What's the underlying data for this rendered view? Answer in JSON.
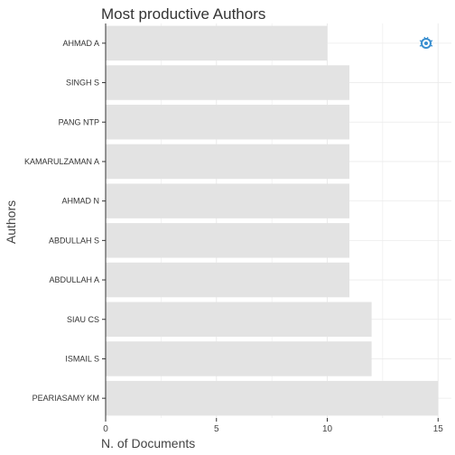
{
  "chart_data": {
    "type": "bar",
    "orientation": "horizontal",
    "title": "Most productive Authors",
    "xlabel": "N. of Documents",
    "ylabel": "Authors",
    "categories": [
      "AHMAD A",
      "SINGH S",
      "PANG NTP",
      "KAMARULZAMAN A",
      "AHMAD N",
      "ABDULLAH S",
      "ABDULLAH A",
      "SIAU CS",
      "ISMAIL S",
      "PEARIASAMY KM"
    ],
    "values": [
      10,
      11,
      11,
      11,
      11,
      11,
      11,
      12,
      12,
      15
    ],
    "xlim": [
      0,
      15.6
    ],
    "xticks": [
      "0",
      "5",
      "10",
      "15"
    ],
    "grid": true,
    "bar_color": "#e3e3e3",
    "grid_color": "#ebebeb"
  },
  "logo": {
    "icon": "bug-logo-icon",
    "color": "#3a8fd0"
  }
}
